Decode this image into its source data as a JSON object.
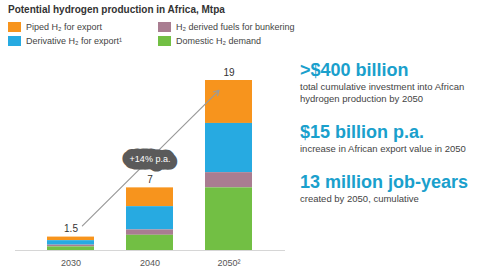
{
  "chart_data": {
    "type": "bar",
    "title": "Potential hydrogen production in Africa, Mtpa",
    "categories": [
      "2030",
      "2040",
      "2050²"
    ],
    "series": [
      {
        "name": "Piped H₂ for export",
        "color": "#f7941d",
        "values": [
          0.4,
          2.1,
          4.8
        ]
      },
      {
        "name": "Derivative H₂ for export¹",
        "color": "#27aae1",
        "values": [
          0.5,
          2.6,
          5.5
        ]
      },
      {
        "name": "H₂ derived fuels for bunkering",
        "color": "#a97d91",
        "values": [
          0.2,
          0.6,
          1.7
        ]
      },
      {
        "name": "Domestic H₂ demand",
        "color": "#72bf44",
        "values": [
          0.4,
          1.7,
          7.0
        ]
      }
    ],
    "totals": [
      1.5,
      7,
      19
    ],
    "stacked": true,
    "ylim": [
      0,
      19
    ],
    "yticks": [],
    "tick_labels": "x",
    "legend": "top",
    "annotations": [
      "+14% p.a."
    ],
    "key_figures": [
      {
        "headline": ">$400 billion",
        "description": "total cumulative investment into African hydrogen production by 2050"
      },
      {
        "headline": "$15 billion p.a.",
        "description": "increase in African export value in 2050"
      },
      {
        "headline": "13 million job-years",
        "description": "created by 2050, cumulative"
      }
    ]
  }
}
